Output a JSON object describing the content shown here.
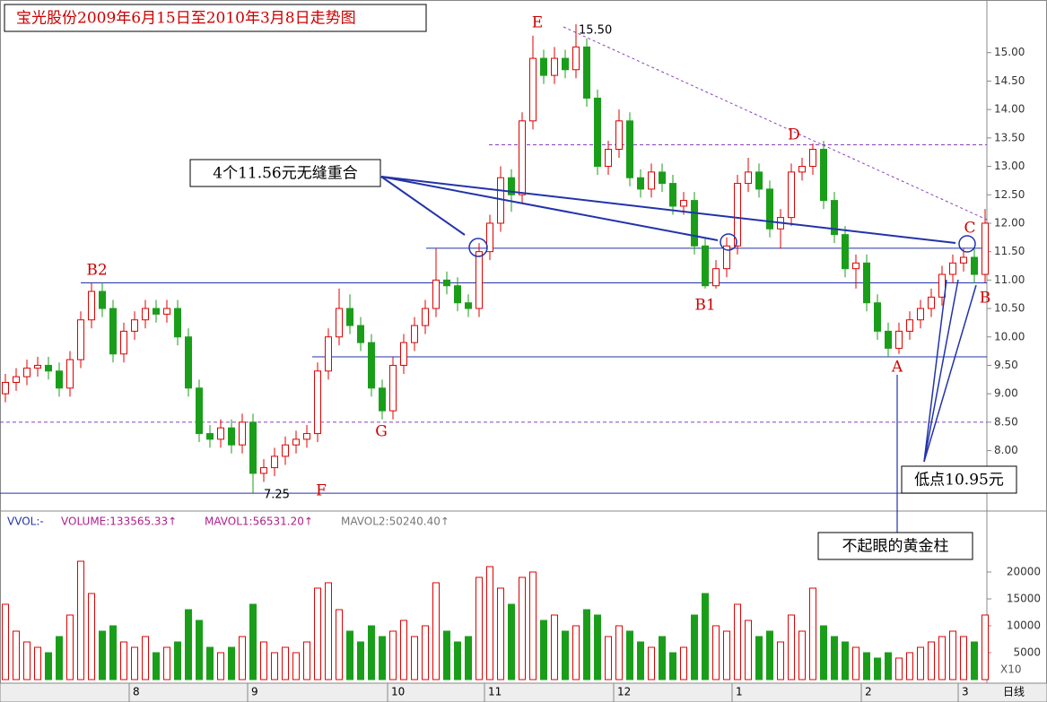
{
  "chart_data": {
    "type": "candlestick",
    "title": "宝光股份2009年6月15日至2010年3月8日走势图",
    "ylim": [
      7.0,
      15.8
    ],
    "yticks": [
      {
        "value": 8,
        "label": "8.00"
      },
      {
        "value": 8.5,
        "label": "8.50"
      },
      {
        "value": 9,
        "label": "9.00"
      },
      {
        "value": 9.5,
        "label": "9.50"
      },
      {
        "value": 10,
        "label": "10.00"
      },
      {
        "value": 10.5,
        "label": "10.50"
      },
      {
        "value": 11,
        "label": "11.00"
      },
      {
        "value": 11.5,
        "label": "11.50"
      },
      {
        "value": 12,
        "label": "12.00"
      },
      {
        "value": 12.5,
        "label": "12.50"
      },
      {
        "value": 13,
        "label": "13.00"
      },
      {
        "value": 13.5,
        "label": "13.50"
      },
      {
        "value": 14,
        "label": "14.00"
      },
      {
        "value": 14.5,
        "label": "14.50"
      },
      {
        "value": 15,
        "label": "15.00"
      }
    ],
    "up_color": "#e00000",
    "down_color": "#1a9e1a",
    "categories": [
      null,
      null,
      null,
      null,
      null,
      null,
      null,
      null,
      null,
      null,
      null,
      null,
      "8",
      null,
      null,
      null,
      null,
      null,
      null,
      null,
      null,
      null,
      null,
      "9",
      null,
      null,
      null,
      null,
      null,
      null,
      null,
      null,
      null,
      null,
      null,
      null,
      "10",
      null,
      null,
      null,
      null,
      null,
      null,
      null,
      null,
      "11",
      null,
      null,
      null,
      null,
      null,
      null,
      null,
      null,
      null,
      null,
      null,
      "12",
      null,
      null,
      null,
      null,
      null,
      null,
      null,
      null,
      null,
      null,
      "1",
      null,
      null,
      null,
      null,
      null,
      null,
      null,
      null,
      null,
      null,
      null,
      "2",
      null,
      null,
      null,
      null,
      null,
      null,
      null,
      null,
      "3",
      null,
      null
    ],
    "ohlc": [
      [
        9.0,
        9.35,
        8.85,
        9.2
      ],
      [
        9.2,
        9.45,
        9.05,
        9.3
      ],
      [
        9.3,
        9.6,
        9.15,
        9.45
      ],
      [
        9.45,
        9.65,
        9.3,
        9.5
      ],
      [
        9.5,
        9.65,
        9.25,
        9.4
      ],
      [
        9.4,
        9.55,
        8.95,
        9.1
      ],
      [
        9.1,
        9.75,
        8.95,
        9.6
      ],
      [
        9.6,
        10.45,
        9.45,
        10.3
      ],
      [
        10.3,
        10.95,
        10.15,
        10.8
      ],
      [
        10.8,
        10.95,
        10.35,
        10.5
      ],
      [
        10.5,
        10.65,
        9.55,
        9.7
      ],
      [
        9.7,
        10.25,
        9.55,
        10.1
      ],
      [
        10.1,
        10.45,
        9.95,
        10.3
      ],
      [
        10.3,
        10.65,
        10.15,
        10.5
      ],
      [
        10.5,
        10.65,
        10.25,
        10.4
      ],
      [
        10.4,
        10.65,
        10.25,
        10.5
      ],
      [
        10.5,
        10.65,
        9.85,
        10.0
      ],
      [
        10.0,
        10.15,
        8.95,
        9.1
      ],
      [
        9.1,
        9.25,
        8.15,
        8.3
      ],
      [
        8.3,
        8.45,
        8.05,
        8.2
      ],
      [
        8.2,
        8.55,
        8.05,
        8.4
      ],
      [
        8.4,
        8.55,
        7.95,
        8.1
      ],
      [
        8.1,
        8.65,
        7.95,
        8.5
      ],
      [
        8.5,
        8.65,
        7.25,
        7.6
      ],
      [
        7.6,
        7.85,
        7.45,
        7.7
      ],
      [
        7.7,
        8.05,
        7.55,
        7.9
      ],
      [
        7.9,
        8.25,
        7.75,
        8.1
      ],
      [
        8.1,
        8.35,
        7.95,
        8.2
      ],
      [
        8.2,
        8.45,
        8.05,
        8.3
      ],
      [
        8.3,
        9.55,
        8.15,
        9.4
      ],
      [
        9.4,
        10.15,
        9.25,
        10.0
      ],
      [
        10.0,
        10.85,
        9.85,
        10.5
      ],
      [
        10.5,
        10.75,
        10.05,
        10.2
      ],
      [
        10.2,
        10.35,
        9.75,
        9.9
      ],
      [
        9.9,
        10.05,
        8.95,
        9.1
      ],
      [
        9.1,
        9.25,
        8.55,
        8.7
      ],
      [
        8.7,
        9.65,
        8.55,
        9.5
      ],
      [
        9.5,
        10.05,
        9.35,
        9.9
      ],
      [
        9.9,
        10.35,
        9.75,
        10.2
      ],
      [
        10.2,
        10.65,
        10.05,
        10.5
      ],
      [
        10.5,
        11.55,
        10.35,
        11.0
      ],
      [
        11.0,
        11.15,
        10.75,
        10.9
      ],
      [
        10.9,
        11.05,
        10.45,
        10.6
      ],
      [
        10.6,
        10.75,
        10.35,
        10.5
      ],
      [
        10.5,
        11.65,
        10.35,
        11.5
      ],
      [
        11.5,
        12.15,
        11.35,
        12.0
      ],
      [
        12.0,
        13.0,
        11.85,
        12.8
      ],
      [
        12.8,
        12.95,
        12.2,
        12.5
      ],
      [
        12.5,
        13.95,
        12.35,
        13.8
      ],
      [
        13.8,
        15.3,
        13.65,
        14.9
      ],
      [
        14.9,
        15.05,
        14.45,
        14.6
      ],
      [
        14.6,
        15.1,
        14.45,
        14.9
      ],
      [
        14.9,
        15.05,
        14.55,
        14.7
      ],
      [
        14.7,
        15.5,
        14.55,
        15.1
      ],
      [
        15.1,
        15.25,
        14.05,
        14.2
      ],
      [
        14.2,
        14.35,
        12.85,
        13.0
      ],
      [
        13.0,
        13.45,
        12.85,
        13.3
      ],
      [
        13.3,
        14.0,
        13.15,
        13.8
      ],
      [
        13.8,
        13.95,
        12.65,
        12.8
      ],
      [
        12.8,
        12.95,
        12.45,
        12.6
      ],
      [
        12.6,
        13.05,
        12.45,
        12.9
      ],
      [
        12.9,
        13.05,
        12.55,
        12.7
      ],
      [
        12.7,
        12.85,
        12.15,
        12.3
      ],
      [
        12.3,
        12.55,
        12.15,
        12.4
      ],
      [
        12.4,
        12.55,
        11.45,
        11.6
      ],
      [
        11.6,
        11.75,
        10.85,
        10.9
      ],
      [
        10.9,
        11.35,
        10.85,
        11.2
      ],
      [
        11.2,
        11.75,
        11.05,
        11.6
      ],
      [
        11.6,
        12.85,
        11.45,
        12.7
      ],
      [
        12.7,
        13.15,
        12.55,
        12.9
      ],
      [
        12.9,
        13.05,
        12.45,
        12.6
      ],
      [
        12.6,
        12.75,
        11.75,
        11.9
      ],
      [
        11.9,
        12.25,
        11.55,
        12.1
      ],
      [
        12.1,
        13.05,
        11.95,
        12.9
      ],
      [
        12.9,
        13.15,
        12.75,
        13.0
      ],
      [
        13.0,
        13.4,
        12.85,
        13.3
      ],
      [
        13.3,
        13.45,
        12.25,
        12.4
      ],
      [
        12.4,
        12.55,
        11.65,
        11.8
      ],
      [
        11.8,
        11.95,
        11.05,
        11.2
      ],
      [
        11.2,
        11.45,
        10.85,
        11.3
      ],
      [
        11.3,
        11.45,
        10.45,
        10.6
      ],
      [
        10.6,
        10.75,
        9.95,
        10.1
      ],
      [
        10.1,
        10.25,
        9.65,
        9.8
      ],
      [
        9.8,
        10.25,
        9.7,
        10.1
      ],
      [
        10.1,
        10.45,
        9.95,
        10.3
      ],
      [
        10.3,
        10.65,
        10.15,
        10.5
      ],
      [
        10.5,
        10.85,
        10.35,
        10.7
      ],
      [
        10.7,
        11.25,
        10.55,
        11.1
      ],
      [
        11.1,
        11.45,
        10.95,
        11.3
      ],
      [
        11.3,
        11.55,
        11.15,
        11.4
      ],
      [
        11.4,
        11.55,
        10.95,
        11.1
      ],
      [
        11.1,
        12.25,
        10.95,
        12.0
      ]
    ],
    "levels": [
      {
        "value": 11.56,
        "style": "solid"
      },
      {
        "value": 10.95,
        "style": "solid"
      },
      {
        "value": 9.65,
        "style": "solid"
      },
      {
        "value": 7.25,
        "style": "solid"
      },
      {
        "value": 13.38,
        "style": "dashed"
      },
      {
        "value": 8.5,
        "style": "dashed"
      }
    ],
    "annotations": {
      "E": "E",
      "high": "15.50",
      "D": "D",
      "C": "C",
      "B": "B",
      "B2": "B2",
      "B1": "B1",
      "A": "A",
      "F": "F",
      "low": "7.25",
      "G": "G",
      "overlap": "4个11.56元无缝重合",
      "low_box": "低点10.95元",
      "gold": "不起眼的黄金柱"
    },
    "volume": {
      "header": [
        "VVOL:-",
        "VOLUME:133565.33↑",
        "MAVOL1:56531.20↑",
        "MAVOL2:50240.40↑"
      ],
      "ylim": [
        0,
        31000
      ],
      "yticks": [
        5000,
        10000,
        15000,
        20000
      ],
      "unit": "X10",
      "values": [
        14000,
        9000,
        7000,
        6000,
        5000,
        8000,
        12000,
        22000,
        16000,
        9000,
        10000,
        7000,
        6000,
        8000,
        5000,
        6000,
        7000,
        13000,
        11000,
        6000,
        5000,
        6000,
        8000,
        14000,
        7000,
        5000,
        6000,
        5000,
        7000,
        17000,
        18000,
        13000,
        9000,
        7000,
        10000,
        8000,
        9000,
        11000,
        8000,
        10000,
        18000,
        9000,
        7000,
        8000,
        19000,
        21000,
        17000,
        14000,
        19000,
        20000,
        11000,
        12000,
        9000,
        10000,
        13000,
        12000,
        8000,
        10000,
        9000,
        7000,
        6000,
        8000,
        5000,
        6000,
        12000,
        16000,
        10000,
        9000,
        14000,
        11000,
        8000,
        9000,
        7000,
        12000,
        9000,
        17000,
        10000,
        8000,
        7000,
        6000,
        5000,
        4000,
        5000,
        4000,
        5000,
        6000,
        7000,
        8000,
        9000,
        8000,
        7000,
        12000
      ]
    },
    "period": "日线"
  }
}
